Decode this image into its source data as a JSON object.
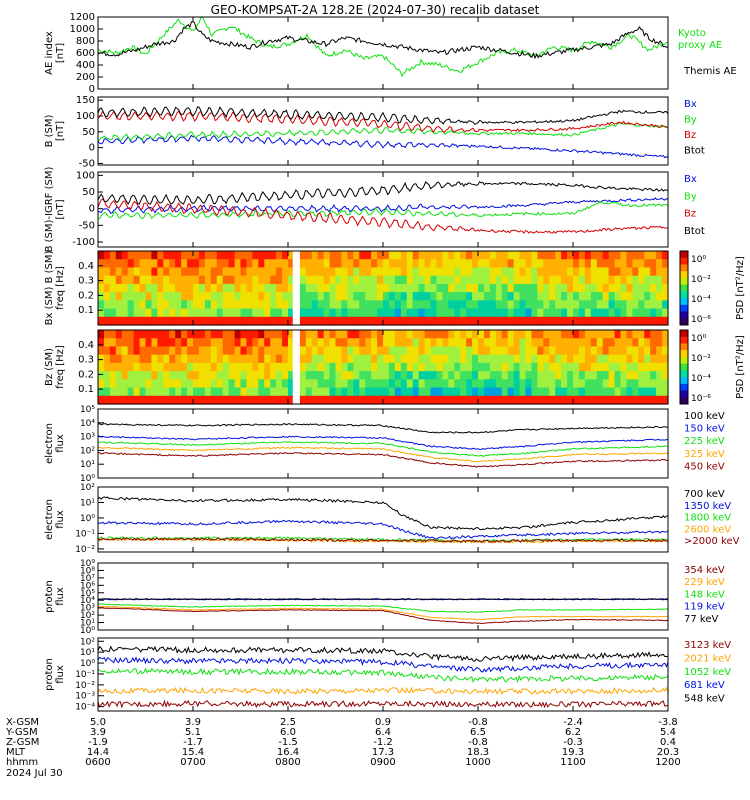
{
  "title": "GEO-KOMPSAT-2A 128.2E (2024-07-30) recalib dataset",
  "colors": {
    "black": "#000000",
    "red": "#d40000",
    "green": "#10e010",
    "blue": "#0010e0",
    "orange": "#ffa500",
    "darkred": "#8b0000",
    "brightgreen": "#00c800"
  },
  "footer": {
    "row_labels": [
      "X-GSM",
      "Y-GSM",
      "Z-GSM",
      "MLT",
      "hhmm"
    ],
    "date": "2024 Jul 30",
    "columns": [
      {
        "x": "5.0",
        "y": "3.9",
        "z": "-1.9",
        "mlt": "14.4",
        "hhmm": "0600"
      },
      {
        "x": "3.9",
        "y": "5.1",
        "z": "-1.7",
        "mlt": "15.4",
        "hhmm": "0700"
      },
      {
        "x": "2.5",
        "y": "6.0",
        "z": "-1.5",
        "mlt": "16.4",
        "hhmm": "0800"
      },
      {
        "x": "0.9",
        "y": "6.4",
        "z": "-1.2",
        "mlt": "17.3",
        "hhmm": "0900"
      },
      {
        "x": "-0.8",
        "y": "6.5",
        "z": "-0.8",
        "mlt": "18.3",
        "hhmm": "1000"
      },
      {
        "x": "-2.4",
        "y": "6.2",
        "z": "-0.3",
        "mlt": "19.3",
        "hhmm": "1100"
      },
      {
        "x": "-3.8",
        "y": "5.4",
        "z": "0.4",
        "mlt": "20.3",
        "hhmm": "1200"
      }
    ]
  },
  "chart_data": [
    {
      "type": "line",
      "panel": "ae",
      "ylabel": [
        "AE index",
        "[nT]"
      ],
      "yticks": [
        "1200",
        "1000",
        "800",
        "600",
        "400",
        "200",
        "0"
      ],
      "ylim": [
        0,
        1200
      ],
      "series": [
        {
          "name": "Kyoto",
          "label2": "proxy AE",
          "color": "#10e010",
          "x": [
            6.0,
            6.2,
            6.35,
            6.5,
            6.6,
            6.75,
            6.85,
            7.0,
            7.1,
            7.2,
            7.4,
            7.6,
            7.8,
            8.0,
            8.2,
            8.4,
            8.6,
            8.8,
            9.0,
            9.2,
            9.4,
            9.6,
            9.8,
            10.0,
            10.2,
            10.4,
            10.6,
            10.8,
            11.0,
            11.2,
            11.4,
            11.6,
            11.8,
            12.0
          ],
          "y": [
            650,
            600,
            700,
            580,
            750,
            1000,
            1150,
            950,
            1200,
            900,
            1050,
            850,
            700,
            750,
            900,
            550,
            650,
            500,
            550,
            250,
            450,
            400,
            300,
            450,
            600,
            650,
            550,
            700,
            650,
            800,
            700,
            900,
            650,
            800
          ]
        },
        {
          "name": "Themis AE",
          "color": "#000000",
          "x": [
            6.0,
            6.2,
            6.4,
            6.6,
            6.8,
            6.9,
            7.0,
            7.1,
            7.2,
            7.4,
            7.6,
            7.8,
            8.0,
            8.2,
            8.4,
            8.6,
            8.8,
            9.0,
            9.2,
            9.4,
            9.6,
            9.8,
            10.0,
            10.2,
            10.4,
            10.6,
            10.8,
            11.0,
            11.2,
            11.4,
            11.6,
            11.7,
            11.8,
            12.0
          ],
          "y": [
            600,
            580,
            650,
            750,
            800,
            1000,
            1100,
            900,
            800,
            750,
            700,
            800,
            850,
            800,
            750,
            850,
            800,
            750,
            700,
            650,
            600,
            650,
            700,
            650,
            600,
            550,
            600,
            650,
            700,
            750,
            950,
            1000,
            850,
            700
          ]
        }
      ]
    },
    {
      "type": "line",
      "panel": "b_sm",
      "ylabel": [
        "B (SM)",
        "[nT]"
      ],
      "yticks": [
        "150",
        "100",
        "50",
        "0",
        "-50"
      ],
      "ylim": [
        -55,
        160
      ],
      "series": [
        {
          "name": "Bx",
          "color": "#0010e0",
          "x": [
            6,
            7,
            8,
            9,
            10,
            11,
            11.5,
            12
          ],
          "y": [
            20,
            30,
            20,
            10,
            5,
            -10,
            -20,
            -30
          ]
        },
        {
          "name": "By",
          "color": "#10e010",
          "x": [
            6,
            7,
            8,
            9,
            9.5,
            10,
            10.5,
            11,
            11.5,
            12
          ],
          "y": [
            30,
            40,
            45,
            55,
            50,
            45,
            45,
            40,
            75,
            65
          ]
        },
        {
          "name": "Bz",
          "color": "#d40000",
          "x": [
            6,
            7,
            8,
            9,
            9.5,
            10,
            10.5,
            11,
            11.5,
            12
          ],
          "y": [
            100,
            100,
            90,
            75,
            60,
            55,
            55,
            60,
            80,
            65
          ]
        },
        {
          "name": "Btot",
          "color": "#000000",
          "x": [
            6,
            7,
            8,
            9,
            9.5,
            10,
            10.5,
            11,
            11.5,
            12
          ],
          "y": [
            110,
            115,
            105,
            95,
            85,
            80,
            80,
            85,
            115,
            110
          ]
        }
      ]
    },
    {
      "type": "line",
      "panel": "b_igrf",
      "ylabel": [
        "B (SM)-IGRF (SM)",
        "[nT]"
      ],
      "yticks": [
        "100",
        "50",
        "0",
        "-50",
        "-100"
      ],
      "ylim": [
        -115,
        110
      ],
      "series": [
        {
          "name": "Bx",
          "color": "#0010e0",
          "x": [
            6,
            7,
            8,
            9,
            9.5,
            10,
            10.5,
            11,
            11.5,
            12
          ],
          "y": [
            -5,
            0,
            0,
            0,
            5,
            5,
            10,
            20,
            25,
            30
          ]
        },
        {
          "name": "By",
          "color": "#10e010",
          "x": [
            6,
            7,
            8,
            9,
            9.5,
            10,
            10.5,
            11,
            11.3,
            11.6,
            12
          ],
          "y": [
            -20,
            -20,
            -15,
            -10,
            -15,
            -20,
            -15,
            -15,
            20,
            10,
            10
          ]
        },
        {
          "name": "Bz",
          "color": "#d40000",
          "x": [
            6,
            7,
            8,
            9,
            9.5,
            10,
            10.5,
            11,
            11.5,
            12
          ],
          "y": [
            15,
            0,
            -20,
            -40,
            -55,
            -65,
            -70,
            -70,
            -60,
            -55
          ]
        },
        {
          "name": "Btot",
          "color": "#000000",
          "x": [
            6,
            7,
            8,
            9,
            9.5,
            10,
            10.5,
            11,
            11.5,
            12
          ],
          "y": [
            30,
            25,
            40,
            55,
            70,
            75,
            75,
            70,
            60,
            55
          ]
        }
      ]
    },
    {
      "type": "heatmap",
      "panel": "bx_spec",
      "ylabel": [
        "Bx (SM) B (SM)",
        "freq [Hz]"
      ],
      "yticks": [
        "0.4",
        "0.3",
        "0.2",
        "0.1"
      ],
      "colorbar": {
        "label": "PSD [nT²/Hz]",
        "ticks": [
          "10⁰",
          "10⁻²",
          "10⁻⁴",
          "10⁻⁶"
        ]
      },
      "gap": [
        8.05,
        8.12
      ]
    },
    {
      "type": "heatmap",
      "panel": "bz_spec",
      "ylabel": [
        "Bz (SM)",
        "freq [Hz]"
      ],
      "yticks": [
        "0.4",
        "0.3",
        "0.2",
        "0.1"
      ],
      "colorbar": {
        "label": "PSD [nT²/Hz]",
        "ticks": [
          "10⁰",
          "10⁻²",
          "10⁻⁴",
          "10⁻⁶"
        ]
      },
      "gap": [
        8.05,
        8.12
      ]
    },
    {
      "type": "line",
      "panel": "elec_low",
      "log": true,
      "ylabel": [
        "electron",
        "flux"
      ],
      "yticks_log": [
        0,
        1,
        2,
        3,
        4,
        5
      ],
      "ylim_log": [
        0,
        5
      ],
      "series": [
        {
          "name": "100 keV",
          "color": "#000000",
          "x": [
            6,
            7,
            8,
            9,
            9.5,
            10,
            10.5,
            11,
            12
          ],
          "y": [
            3.9,
            3.8,
            3.9,
            3.8,
            3.3,
            3.3,
            3.5,
            3.6,
            3.7
          ]
        },
        {
          "name": "150 keV",
          "color": "#0010e0",
          "x": [
            6,
            7,
            8,
            9,
            9.5,
            10,
            10.5,
            11,
            12
          ],
          "y": [
            3.0,
            2.8,
            3.0,
            2.9,
            2.3,
            2.1,
            2.3,
            2.6,
            2.8
          ]
        },
        {
          "name": "225 keV",
          "color": "#10e010",
          "x": [
            6,
            7,
            8,
            9,
            9.5,
            10,
            10.5,
            11,
            12
          ],
          "y": [
            2.6,
            2.4,
            2.6,
            2.5,
            1.9,
            1.6,
            1.8,
            2.1,
            2.3
          ]
        },
        {
          "name": "325 keV",
          "color": "#ffa500",
          "x": [
            6,
            7,
            8,
            9,
            9.5,
            10,
            10.5,
            11,
            12
          ],
          "y": [
            2.2,
            2.0,
            2.2,
            2.1,
            1.5,
            1.2,
            1.4,
            1.7,
            1.8
          ]
        },
        {
          "name": "450 keV",
          "color": "#8b0000",
          "x": [
            6,
            7,
            8,
            9,
            9.5,
            10,
            10.5,
            11,
            12
          ],
          "y": [
            1.8,
            1.6,
            1.8,
            1.7,
            1.1,
            0.8,
            1.0,
            1.2,
            1.3
          ]
        }
      ]
    },
    {
      "type": "line",
      "panel": "elec_high",
      "log": true,
      "ylabel": [
        "electron",
        "flux"
      ],
      "yticks_log": [
        -2,
        -1,
        0,
        1,
        2
      ],
      "ylim_log": [
        -2.2,
        2
      ],
      "series": [
        {
          "name": "700 keV",
          "color": "#000000",
          "x": [
            6,
            7,
            8,
            9,
            9.2,
            9.5,
            10,
            10.5,
            11,
            12
          ],
          "y": [
            1.3,
            1.1,
            1.2,
            1.0,
            0.2,
            -0.6,
            -0.7,
            -0.6,
            -0.3,
            0.1
          ]
        },
        {
          "name": "1350 keV",
          "color": "#0010e0",
          "x": [
            6,
            7,
            8,
            9,
            9.2,
            9.5,
            10,
            11,
            12
          ],
          "y": [
            -0.3,
            -0.4,
            -0.2,
            -0.4,
            -0.8,
            -1.3,
            -1.2,
            -1.0,
            -0.9
          ]
        },
        {
          "name": "1800 keV",
          "color": "#10e010",
          "x": [
            6,
            7,
            8,
            9,
            10,
            11,
            12
          ],
          "y": [
            -1.3,
            -1.3,
            -1.3,
            -1.4,
            -1.5,
            -1.4,
            -1.4
          ]
        },
        {
          "name": "2600 keV",
          "color": "#ffa500",
          "x": [
            6,
            7,
            8,
            9,
            10,
            11,
            12
          ],
          "y": [
            -1.4,
            -1.4,
            -1.45,
            -1.5,
            -1.55,
            -1.5,
            -1.5
          ]
        },
        {
          "name": ">2000 keV",
          "color": "#8b0000",
          "x": [
            6,
            7,
            8,
            9,
            10,
            11,
            12
          ],
          "y": [
            -1.35,
            -1.35,
            -1.4,
            -1.45,
            -1.5,
            -1.45,
            -1.45
          ]
        }
      ]
    },
    {
      "type": "line",
      "panel": "prot_low",
      "log": true,
      "ylabel": [
        "proton",
        "flux"
      ],
      "yticks_log": [
        0,
        1,
        2,
        3,
        4,
        5,
        6,
        7,
        8,
        9
      ],
      "ylim_log": [
        0,
        9
      ],
      "series": [
        {
          "name": "354 keV",
          "color": "#8b0000",
          "x": [
            6,
            7,
            8,
            9,
            9.5,
            10,
            10.5,
            11,
            12
          ],
          "y": [
            3.0,
            2.5,
            2.7,
            2.6,
            1.3,
            0.9,
            1.2,
            1.4,
            1.3
          ]
        },
        {
          "name": "229 keV",
          "color": "#ffa500",
          "x": [
            6,
            7,
            8,
            9,
            9.5,
            10,
            10.5,
            11,
            12
          ],
          "y": [
            3.2,
            2.7,
            2.9,
            2.8,
            1.7,
            1.4,
            1.8,
            1.8,
            1.8
          ]
        },
        {
          "name": "148 keV",
          "color": "#10e010",
          "x": [
            6,
            7,
            8,
            9,
            9.5,
            10,
            10.5,
            11,
            12
          ],
          "y": [
            3.5,
            3.1,
            3.3,
            3.2,
            2.5,
            2.4,
            2.7,
            2.7,
            2.8
          ]
        },
        {
          "name": "119 keV",
          "color": "#0010e0",
          "x": [
            6,
            7,
            8,
            9,
            10,
            11,
            12
          ],
          "y": [
            4.1,
            4.1,
            4.1,
            4.1,
            4.1,
            4.1,
            4.1
          ]
        },
        {
          "name": "77 keV",
          "color": "#000000",
          "x": [
            6,
            7,
            8,
            9,
            10,
            11,
            12
          ],
          "y": [
            4.15,
            4.15,
            4.15,
            4.15,
            4.15,
            4.15,
            4.15
          ]
        }
      ]
    },
    {
      "type": "line",
      "panel": "prot_high",
      "log": true,
      "ylabel": [
        "proton",
        "flux"
      ],
      "yticks_log": [
        -4,
        -3,
        -2,
        -1,
        0,
        1,
        2
      ],
      "ylim_log": [
        -4.4,
        2.3
      ],
      "series": [
        {
          "name": "3123 keV",
          "color": "#8b0000",
          "x": [
            6,
            7,
            8,
            9,
            10,
            11,
            12
          ],
          "y": [
            -3.8,
            -3.7,
            -3.8,
            -3.7,
            -3.8,
            -3.8,
            -3.7
          ]
        },
        {
          "name": "2021 keV",
          "color": "#ffa500",
          "x": [
            6,
            7,
            8,
            9,
            10,
            11,
            12
          ],
          "y": [
            -2.6,
            -2.5,
            -2.6,
            -2.5,
            -2.6,
            -2.6,
            -2.5
          ]
        },
        {
          "name": "1052 keV",
          "color": "#10e010",
          "x": [
            6,
            7,
            8,
            9,
            9.5,
            10,
            11,
            12
          ],
          "y": [
            -0.7,
            -0.8,
            -0.8,
            -0.9,
            -1.3,
            -1.5,
            -1.4,
            -1.3
          ]
        },
        {
          "name": "681 keV",
          "color": "#0010e0",
          "x": [
            6,
            7,
            8,
            9,
            9.5,
            10,
            11,
            12
          ],
          "y": [
            0.3,
            0.2,
            0.2,
            0.1,
            -0.3,
            -0.6,
            -0.3,
            -0.1
          ]
        },
        {
          "name": "548 keV",
          "color": "#000000",
          "x": [
            6,
            7,
            8,
            9,
            9.5,
            10,
            11,
            12
          ],
          "y": [
            1.3,
            1.2,
            1.2,
            1.1,
            0.6,
            0.4,
            0.6,
            0.8
          ]
        }
      ]
    }
  ]
}
